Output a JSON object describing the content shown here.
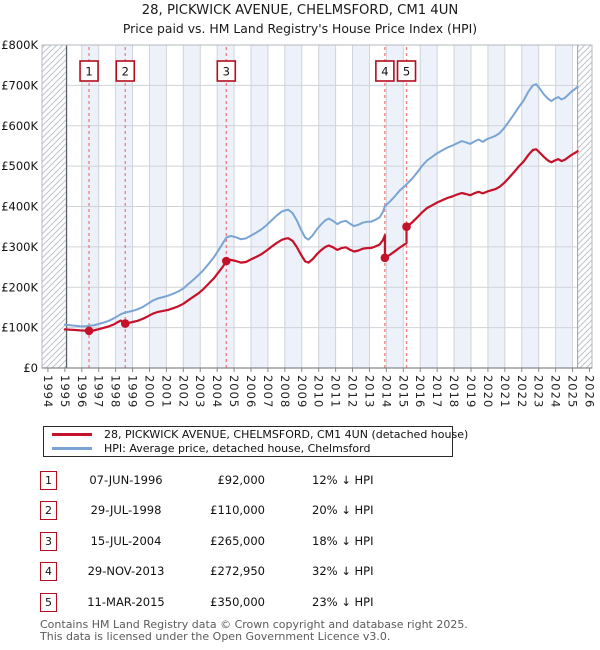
{
  "title": "28, PICKWICK AVENUE, CHELMSFORD, CM1 4UN",
  "subtitle": "Price paid vs. HM Land Registry's House Price Index (HPI)",
  "chart_data": {
    "type": "line",
    "title": "28, PICKWICK AVENUE, CHELMSFORD, CM1 4UN — Price paid vs. HPI",
    "xlabel": "",
    "ylabel": "",
    "xlim": [
      1993.65,
      2026.15
    ],
    "ylim": [
      0,
      800000
    ],
    "grid": true,
    "legend_position": "below",
    "x_ticks": [
      "1994",
      "1995",
      "1996",
      "1997",
      "1998",
      "1999",
      "2000",
      "2001",
      "2002",
      "2003",
      "2004",
      "2005",
      "2006",
      "2007",
      "2008",
      "2009",
      "2010",
      "2011",
      "2012",
      "2013",
      "2014",
      "2015",
      "2016",
      "2017",
      "2018",
      "2019",
      "2020",
      "2021",
      "2022",
      "2023",
      "2024",
      "2025",
      "2026"
    ],
    "y_ticks": [
      "£0",
      "£100K",
      "£200K",
      "£300K",
      "£400K",
      "£500K",
      "£600K",
      "£700K",
      "£800K"
    ],
    "values_unit": "GBP_thousands",
    "data_start_year": 1995.1,
    "data_end_year": 2025.3,
    "colors": {
      "property_line": "#c5112a",
      "hpi_line": "#7aa4d4",
      "marker_dashed": "#f08486",
      "marker_box_border": "#b50d1d",
      "band_fill": "#edf2fa",
      "gridline": "#d0d3d8"
    },
    "series": [
      {
        "name": "28, PICKWICK AVENUE, CHELMSFORD, CM1 4UN (detached house)",
        "color": "#c5112a",
        "width": 2.2,
        "points": [
          [
            1995.0,
            95.5
          ],
          [
            1995.3,
            94.8
          ],
          [
            1995.6,
            94.2
          ],
          [
            1995.9,
            93.2
          ],
          [
            1996.2,
            92.6
          ],
          [
            1996.43,
            92
          ],
          [
            1996.7,
            93
          ],
          [
            1997.0,
            96
          ],
          [
            1997.3,
            99.5
          ],
          [
            1997.6,
            103
          ],
          [
            1997.9,
            108
          ],
          [
            1998.1,
            113
          ],
          [
            1998.3,
            117.5
          ],
          [
            1998.45,
            113.5
          ],
          [
            1998.57,
            110
          ],
          [
            1998.8,
            112
          ],
          [
            1999.0,
            114
          ],
          [
            1999.3,
            117
          ],
          [
            1999.6,
            121.5
          ],
          [
            1999.9,
            128
          ],
          [
            2000.2,
            134.5
          ],
          [
            2000.5,
            139
          ],
          [
            2000.8,
            141.5
          ],
          [
            2001.1,
            144
          ],
          [
            2001.4,
            148
          ],
          [
            2001.7,
            152.5
          ],
          [
            2002.0,
            159
          ],
          [
            2002.3,
            168
          ],
          [
            2002.6,
            176.5
          ],
          [
            2002.9,
            185
          ],
          [
            2003.2,
            196
          ],
          [
            2003.5,
            209
          ],
          [
            2003.8,
            222
          ],
          [
            2004.1,
            238
          ],
          [
            2004.35,
            252
          ],
          [
            2004.54,
            265
          ],
          [
            2004.8,
            268
          ],
          [
            2005.1,
            265
          ],
          [
            2005.4,
            261
          ],
          [
            2005.7,
            262.5
          ],
          [
            2006.0,
            269
          ],
          [
            2006.3,
            275
          ],
          [
            2006.6,
            281.5
          ],
          [
            2006.9,
            290
          ],
          [
            2007.2,
            300
          ],
          [
            2007.5,
            309
          ],
          [
            2007.8,
            317
          ],
          [
            2008.0,
            320
          ],
          [
            2008.2,
            321.5
          ],
          [
            2008.45,
            315
          ],
          [
            2008.7,
            300
          ],
          [
            2008.95,
            281
          ],
          [
            2009.2,
            264
          ],
          [
            2009.4,
            261
          ],
          [
            2009.65,
            270
          ],
          [
            2009.9,
            282
          ],
          [
            2010.15,
            292
          ],
          [
            2010.4,
            300
          ],
          [
            2010.6,
            303.5
          ],
          [
            2010.85,
            299
          ],
          [
            2011.1,
            292.5
          ],
          [
            2011.35,
            297
          ],
          [
            2011.6,
            299
          ],
          [
            2011.85,
            293
          ],
          [
            2012.1,
            288.5
          ],
          [
            2012.35,
            291
          ],
          [
            2012.6,
            295.5
          ],
          [
            2012.85,
            297
          ],
          [
            2013.1,
            297.5
          ],
          [
            2013.35,
            301
          ],
          [
            2013.6,
            306
          ],
          [
            2013.8,
            317
          ],
          [
            2013.91,
            329
          ],
          [
            2013.91,
            272.95
          ],
          [
            2014.2,
            280
          ],
          [
            2014.5,
            289
          ],
          [
            2014.8,
            298.5
          ],
          [
            2015.05,
            305.5
          ],
          [
            2015.19,
            309
          ],
          [
            2015.19,
            350
          ],
          [
            2015.5,
            360
          ],
          [
            2015.8,
            372
          ],
          [
            2016.1,
            385
          ],
          [
            2016.4,
            396
          ],
          [
            2016.7,
            403
          ],
          [
            2017.0,
            410
          ],
          [
            2017.3,
            415.5
          ],
          [
            2017.6,
            421
          ],
          [
            2017.9,
            425
          ],
          [
            2018.2,
            430
          ],
          [
            2018.45,
            433.5
          ],
          [
            2018.7,
            431
          ],
          [
            2018.95,
            428
          ],
          [
            2019.2,
            433
          ],
          [
            2019.45,
            436.5
          ],
          [
            2019.7,
            432.5
          ],
          [
            2019.95,
            437
          ],
          [
            2020.2,
            440
          ],
          [
            2020.45,
            443
          ],
          [
            2020.7,
            449
          ],
          [
            2020.95,
            458
          ],
          [
            2021.2,
            469
          ],
          [
            2021.5,
            483
          ],
          [
            2021.8,
            498
          ],
          [
            2022.1,
            511
          ],
          [
            2022.4,
            528
          ],
          [
            2022.65,
            540
          ],
          [
            2022.85,
            542
          ],
          [
            2023.05,
            534
          ],
          [
            2023.3,
            523
          ],
          [
            2023.55,
            514
          ],
          [
            2023.75,
            509.5
          ],
          [
            2023.95,
            514
          ],
          [
            2024.15,
            517.5
          ],
          [
            2024.35,
            512.5
          ],
          [
            2024.55,
            516
          ],
          [
            2024.75,
            522
          ],
          [
            2024.95,
            528
          ],
          [
            2025.15,
            533
          ],
          [
            2025.3,
            537
          ]
        ]
      },
      {
        "name": "HPI: Average price, detached house, Chelmsford",
        "color": "#7aa4d4",
        "width": 2,
        "points": [
          [
            1995.0,
            107.5
          ],
          [
            1995.3,
            106
          ],
          [
            1995.6,
            104.5
          ],
          [
            1995.9,
            103.2
          ],
          [
            1996.2,
            103
          ],
          [
            1996.43,
            104.5
          ],
          [
            1996.7,
            105.5
          ],
          [
            1997.0,
            109
          ],
          [
            1997.3,
            112.5
          ],
          [
            1997.6,
            117
          ],
          [
            1997.9,
            123
          ],
          [
            1998.1,
            128
          ],
          [
            1998.3,
            133
          ],
          [
            1998.57,
            137.5
          ],
          [
            1998.8,
            139.5
          ],
          [
            1999.0,
            141.5
          ],
          [
            1999.3,
            145.5
          ],
          [
            1999.6,
            151
          ],
          [
            1999.9,
            159
          ],
          [
            2000.2,
            167
          ],
          [
            2000.5,
            172.5
          ],
          [
            2000.8,
            175.5
          ],
          [
            2001.1,
            179
          ],
          [
            2001.4,
            184
          ],
          [
            2001.7,
            189.5
          ],
          [
            2002.0,
            197
          ],
          [
            2002.3,
            208
          ],
          [
            2002.6,
            219
          ],
          [
            2002.9,
            230
          ],
          [
            2003.2,
            243
          ],
          [
            2003.5,
            258
          ],
          [
            2003.8,
            274
          ],
          [
            2004.1,
            293
          ],
          [
            2004.35,
            310
          ],
          [
            2004.54,
            323
          ],
          [
            2004.8,
            327
          ],
          [
            2005.1,
            324
          ],
          [
            2005.4,
            319
          ],
          [
            2005.7,
            321
          ],
          [
            2006.0,
            328
          ],
          [
            2006.3,
            335
          ],
          [
            2006.6,
            343
          ],
          [
            2006.9,
            353
          ],
          [
            2007.2,
            365
          ],
          [
            2007.5,
            377
          ],
          [
            2007.8,
            387
          ],
          [
            2008.0,
            390
          ],
          [
            2008.2,
            392
          ],
          [
            2008.45,
            384
          ],
          [
            2008.7,
            366
          ],
          [
            2008.95,
            343
          ],
          [
            2009.2,
            323
          ],
          [
            2009.4,
            318
          ],
          [
            2009.65,
            329
          ],
          [
            2009.9,
            344
          ],
          [
            2010.15,
            356
          ],
          [
            2010.4,
            366
          ],
          [
            2010.6,
            370
          ],
          [
            2010.85,
            364
          ],
          [
            2011.1,
            356.5
          ],
          [
            2011.35,
            362
          ],
          [
            2011.6,
            364.5
          ],
          [
            2011.85,
            357.5
          ],
          [
            2012.1,
            351.5
          ],
          [
            2012.35,
            355
          ],
          [
            2012.6,
            360
          ],
          [
            2012.85,
            362
          ],
          [
            2013.1,
            362.5
          ],
          [
            2013.35,
            367
          ],
          [
            2013.6,
            373
          ],
          [
            2013.8,
            387
          ],
          [
            2013.91,
            401
          ],
          [
            2014.2,
            412
          ],
          [
            2014.5,
            425
          ],
          [
            2014.8,
            440
          ],
          [
            2015.05,
            449
          ],
          [
            2015.19,
            455
          ],
          [
            2015.5,
            468
          ],
          [
            2015.8,
            483
          ],
          [
            2016.1,
            500
          ],
          [
            2016.4,
            514
          ],
          [
            2016.7,
            523
          ],
          [
            2017.0,
            532
          ],
          [
            2017.3,
            539
          ],
          [
            2017.6,
            546
          ],
          [
            2017.9,
            551
          ],
          [
            2018.2,
            557
          ],
          [
            2018.45,
            562
          ],
          [
            2018.7,
            559
          ],
          [
            2018.95,
            555
          ],
          [
            2019.2,
            561
          ],
          [
            2019.45,
            566
          ],
          [
            2019.7,
            560
          ],
          [
            2019.95,
            567
          ],
          [
            2020.2,
            571
          ],
          [
            2020.45,
            575
          ],
          [
            2020.7,
            582
          ],
          [
            2020.95,
            594
          ],
          [
            2021.2,
            608
          ],
          [
            2021.5,
            626
          ],
          [
            2021.8,
            645
          ],
          [
            2022.1,
            662
          ],
          [
            2022.4,
            685
          ],
          [
            2022.65,
            700
          ],
          [
            2022.85,
            703
          ],
          [
            2023.05,
            693
          ],
          [
            2023.3,
            678
          ],
          [
            2023.55,
            667
          ],
          [
            2023.75,
            661
          ],
          [
            2023.95,
            667
          ],
          [
            2024.15,
            671
          ],
          [
            2024.35,
            665
          ],
          [
            2024.55,
            669
          ],
          [
            2024.75,
            677
          ],
          [
            2024.95,
            685
          ],
          [
            2025.15,
            691
          ],
          [
            2025.3,
            697
          ]
        ]
      }
    ],
    "sales": [
      {
        "label": "1",
        "year": 1996.43,
        "price": 92000
      },
      {
        "label": "2",
        "year": 1998.57,
        "price": 110000
      },
      {
        "label": "3",
        "year": 2004.54,
        "price": 265000
      },
      {
        "label": "4",
        "year": 2013.91,
        "price": 272950
      },
      {
        "label": "5",
        "year": 2015.19,
        "price": 350000
      }
    ]
  },
  "legend": {
    "items": [
      {
        "label": "28, PICKWICK AVENUE, CHELMSFORD, CM1 4UN (detached house)",
        "color": "#c5112a"
      },
      {
        "label": "HPI: Average price, detached house, Chelmsford",
        "color": "#7aa4d4"
      }
    ]
  },
  "table": {
    "rows": [
      {
        "num": "1",
        "date": "07-JUN-1996",
        "price": "£92,000",
        "hpi_delta": "12% ↓ HPI"
      },
      {
        "num": "2",
        "date": "29-JUL-1998",
        "price": "£110,000",
        "hpi_delta": "20% ↓ HPI"
      },
      {
        "num": "3",
        "date": "15-JUL-2004",
        "price": "£265,000",
        "hpi_delta": "18% ↓ HPI"
      },
      {
        "num": "4",
        "date": "29-NOV-2013",
        "price": "£272,950",
        "hpi_delta": "32% ↓ HPI"
      },
      {
        "num": "5",
        "date": "11-MAR-2015",
        "price": "£350,000",
        "hpi_delta": "23% ↓ HPI"
      }
    ]
  },
  "footer": {
    "line1": "Contains HM Land Registry data © Crown copyright and database right 2025.",
    "line2": "This data is licensed under the Open Government Licence v3.0."
  }
}
